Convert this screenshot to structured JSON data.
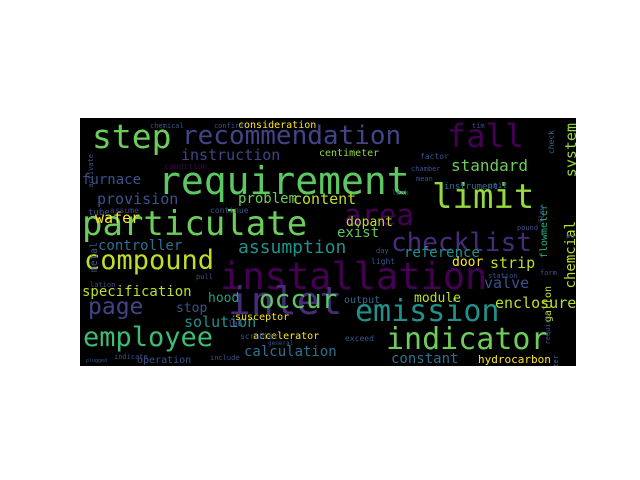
{
  "palette": {
    "c1": "#2fb47c",
    "c2": "#6ccd5a",
    "c3": "#bddf26",
    "c4": "#3dbc74",
    "c5": "#472c7a",
    "c6": "#3b528b",
    "c7": "#21918c",
    "c8": "#95d840",
    "c9": "#2c728e",
    "c10": "#5dc863",
    "c11": "#414487",
    "c12": "#fde725",
    "c13": "#440154",
    "c14": "#28ae80",
    "c15": "#1fa188",
    "c16": "#31688e"
  },
  "words": [
    {
      "text": "requirement",
      "rot": 0,
      "color": "c10"
    },
    {
      "text": "particulate",
      "rot": 0,
      "color": "c2"
    },
    {
      "text": "installation",
      "rot": 0,
      "color": "c13"
    },
    {
      "text": "step",
      "rot": 0,
      "color": "c2"
    },
    {
      "text": "recommendation",
      "rot": 0,
      "color": "c11"
    },
    {
      "text": "fall",
      "rot": 0,
      "color": "c13"
    },
    {
      "text": "limit",
      "rot": 0,
      "color": "c8"
    },
    {
      "text": "system",
      "rot": -90,
      "color": "c8"
    },
    {
      "text": "area",
      "rot": 0,
      "color": "c13"
    },
    {
      "text": "checklist",
      "rot": 0,
      "color": "c5"
    },
    {
      "text": "compound",
      "rot": 0,
      "color": "c3"
    },
    {
      "text": "inlet",
      "rot": 0,
      "color": "c5"
    },
    {
      "text": "emission",
      "rot": 0,
      "color": "c7"
    },
    {
      "text": "indicator",
      "rot": 0,
      "color": "c2"
    },
    {
      "text": "employee",
      "rot": 0,
      "color": "c4"
    },
    {
      "text": "occur",
      "rot": 0,
      "color": "c10"
    },
    {
      "text": "page",
      "rot": 0,
      "color": "c11"
    },
    {
      "text": "assumption",
      "rot": 0,
      "color": "c7"
    },
    {
      "text": "instruction",
      "rot": 0,
      "color": "c11"
    },
    {
      "text": "content",
      "rot": 0,
      "color": "c3"
    },
    {
      "text": "provision",
      "rot": 0,
      "color": "c6"
    },
    {
      "text": "controller",
      "rot": 0,
      "color": "c9"
    },
    {
      "text": "specification",
      "rot": 0,
      "color": "c3"
    },
    {
      "text": "wafer",
      "rot": 0,
      "color": "c12"
    },
    {
      "text": "furnace",
      "rot": 0,
      "color": "c6"
    },
    {
      "text": "standard",
      "rot": 0,
      "color": "c2"
    },
    {
      "text": "reference",
      "rot": 0,
      "color": "c7"
    },
    {
      "text": "problem",
      "rot": 0,
      "color": "c2"
    },
    {
      "text": "exist",
      "rot": 0,
      "color": "c10"
    },
    {
      "text": "strip",
      "rot": 0,
      "color": "c3"
    },
    {
      "text": "valve",
      "rot": 0,
      "color": "c6"
    },
    {
      "text": "enclosure",
      "rot": 0,
      "color": "c3"
    },
    {
      "text": "chemcial",
      "rot": -90,
      "color": "c3"
    },
    {
      "text": "solution",
      "rot": 0,
      "color": "c7"
    },
    {
      "text": "calculation",
      "rot": 0,
      "color": "c9"
    },
    {
      "text": "constant",
      "rot": 0,
      "color": "c9"
    },
    {
      "text": "dopant",
      "rot": 0,
      "color": "c3"
    },
    {
      "text": "module",
      "rot": 0,
      "color": "c3"
    },
    {
      "text": "hood",
      "rot": 0,
      "color": "c15"
    },
    {
      "text": "stop",
      "rot": 0,
      "color": "c6"
    },
    {
      "text": "door",
      "rot": 0,
      "color": "c12"
    },
    {
      "text": "consideration",
      "rot": 0,
      "color": "c12"
    },
    {
      "text": "centimeter",
      "rot": 0,
      "color": "c8"
    },
    {
      "text": "accelerator",
      "rot": 0,
      "color": "c12"
    },
    {
      "text": "susceptor",
      "rot": 0,
      "color": "c12"
    },
    {
      "text": "hydrocarbon",
      "rot": 0,
      "color": "c12"
    },
    {
      "text": "operation",
      "rot": 0,
      "color": "c6"
    },
    {
      "text": "flowmeter",
      "rot": -90,
      "color": "c14"
    },
    {
      "text": "gallon",
      "rot": -90,
      "color": "c3"
    },
    {
      "text": "metal",
      "rot": -90,
      "color": "c6"
    },
    {
      "text": "tube",
      "rot": 0,
      "color": "c6"
    },
    {
      "text": "assume",
      "rot": 0,
      "color": "c11"
    },
    {
      "text": "condition",
      "rot": 0,
      "color": "c13"
    },
    {
      "text": "chemical",
      "rot": 0,
      "color": "c6"
    },
    {
      "text": "confirm",
      "rot": 0,
      "color": "c6"
    },
    {
      "text": "factor",
      "rot": 0,
      "color": "c6"
    },
    {
      "text": "chamber",
      "rot": 0,
      "color": "c6"
    },
    {
      "text": "instrument",
      "rot": 0,
      "color": "c9"
    },
    {
      "text": "unit",
      "rot": 0,
      "color": "c16"
    },
    {
      "text": "tim",
      "rot": 0,
      "color": "c6"
    },
    {
      "text": "check",
      "rot": -90,
      "color": "c16"
    },
    {
      "text": "continue",
      "rot": 0,
      "color": "c6"
    },
    {
      "text": "lab",
      "rot": 0,
      "color": "c6"
    },
    {
      "text": "scrubber",
      "rot": 0,
      "color": "c6"
    },
    {
      "text": "output",
      "rot": 0,
      "color": "c16"
    },
    {
      "text": "exceed",
      "rot": 0,
      "color": "c6"
    },
    {
      "text": "include",
      "rot": 0,
      "color": "c6"
    },
    {
      "text": "indicate",
      "rot": 0,
      "color": "c6"
    },
    {
      "text": "light",
      "rot": 0,
      "color": "c6"
    },
    {
      "text": "leak",
      "rot": 0,
      "color": "c6"
    },
    {
      "text": "day",
      "rot": 0,
      "color": "c6"
    },
    {
      "text": "station",
      "rot": 0,
      "color": "c6"
    },
    {
      "text": "pound",
      "rot": 0,
      "color": "c6"
    },
    {
      "text": "liter",
      "rot": -90,
      "color": "c16"
    },
    {
      "text": "form",
      "rot": 0,
      "color": "c6"
    },
    {
      "text": "pull",
      "rot": 0,
      "color": "c6"
    },
    {
      "text": "lation",
      "rot": 0,
      "color": "c6"
    },
    {
      "text": "plugged",
      "rot": 0,
      "color": "c6"
    },
    {
      "text": "activate",
      "rot": -90,
      "color": "c6"
    },
    {
      "text": "flow",
      "rot": -90,
      "color": "c6"
    },
    {
      "text": "require",
      "rot": -90,
      "color": "c6"
    },
    {
      "text": "part",
      "rot": 0,
      "color": "c6"
    },
    {
      "text": "mean",
      "rot": 0,
      "color": "c6"
    },
    {
      "text": "general",
      "rot": 0,
      "color": "c6"
    }
  ]
}
